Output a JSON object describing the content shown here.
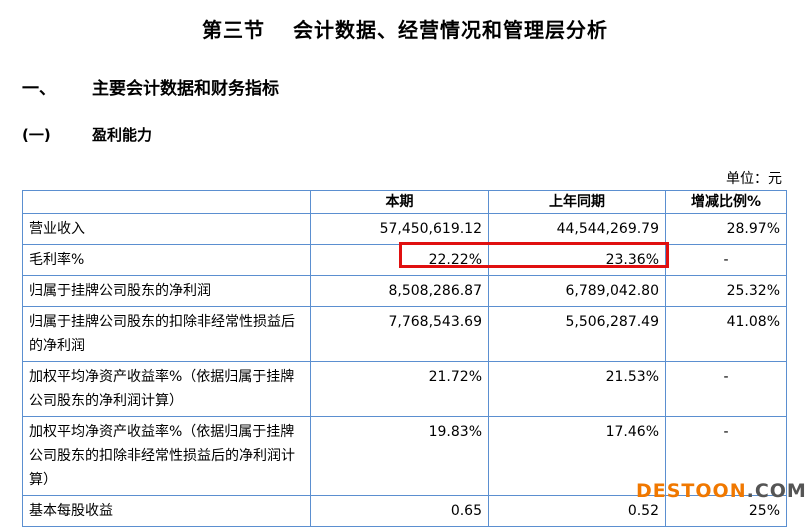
{
  "title": {
    "section": "第三节",
    "text": "会计数据、经营情况和管理层分析"
  },
  "heading1": {
    "number": "一、",
    "text": "主要会计数据和财务指标"
  },
  "heading2": {
    "number": "(一)",
    "text": "盈利能力"
  },
  "unit": "单位：元",
  "table": {
    "headers": [
      "",
      "本期",
      "上年同期",
      "增减比例%"
    ],
    "rows": [
      [
        "营业收入",
        "57,450,619.12",
        "44,544,269.79",
        "28.97%"
      ],
      [
        "毛利率%",
        "22.22%",
        "23.36%",
        "-"
      ],
      [
        "归属于挂牌公司股东的净利润",
        "8,508,286.87",
        "6,789,042.80",
        "25.32%"
      ],
      [
        "归属于挂牌公司股东的扣除非经常性损益后的净利润",
        "7,768,543.69",
        "5,506,287.49",
        "41.08%"
      ],
      [
        "加权平均净资产收益率%（依据归属于挂牌公司股东的净利润计算）",
        "21.72%",
        "21.53%",
        "-"
      ],
      [
        "加权平均净资产收益率%（依据归属于挂牌公司股东的扣除非经常性损益后的净利润计算）",
        "19.83%",
        "17.46%",
        "-"
      ],
      [
        "基本每股收益",
        "0.65",
        "0.52",
        "25%"
      ]
    ]
  },
  "highlight_color": "#e01010",
  "watermark": {
    "main": "DESTOON",
    "suffix": ".COM"
  }
}
